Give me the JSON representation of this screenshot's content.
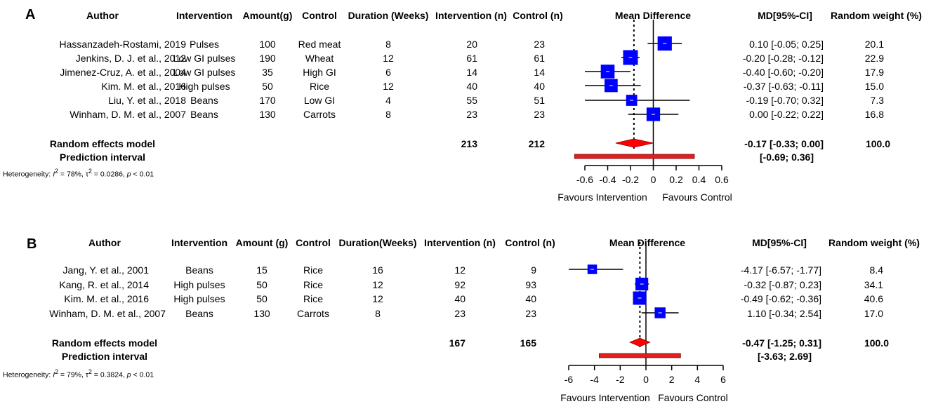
{
  "panels": [
    {
      "letter": "A",
      "headers": {
        "author": "Author",
        "intervention": "Intervention",
        "amount": "Amount(g)",
        "control": "Control",
        "duration": "Duration (Weeks)",
        "n_int": "Intervention (n)",
        "n_ctrl": "Control (n)",
        "md_title": "Mean Difference",
        "ci": "MD[95%-CI]",
        "weight": "Random weight (%)"
      },
      "rows": [
        {
          "author": "Hassanzadeh-Rostami, 2019",
          "intervention": "Pulses",
          "amount": "100",
          "control": "Red meat",
          "duration": "8",
          "n_int": "20",
          "n_ctrl": "23",
          "ci": "0.10 [-0.05;  0.25]",
          "weight": "20.1"
        },
        {
          "author": "Jenkins, D. J. et al., 2012",
          "intervention": "Low GI pulses",
          "amount": "190",
          "control": "Wheat",
          "duration": "12",
          "n_int": "61",
          "n_ctrl": "61",
          "ci": "-0.20 [-0.28; -0.12]",
          "weight": "22.9"
        },
        {
          "author": "Jimenez-Cruz, A. et al., 2004",
          "intervention": "Low GI pulses",
          "amount": "35",
          "control": "High GI",
          "duration": "6",
          "n_int": "14",
          "n_ctrl": "14",
          "ci": "-0.40 [-0.60; -0.20]",
          "weight": "17.9"
        },
        {
          "author": "Kim. M. et al., 2016",
          "intervention": "High pulses",
          "amount": "50",
          "control": "Rice",
          "duration": "12",
          "n_int": "40",
          "n_ctrl": "40",
          "ci": "-0.37 [-0.63; -0.11]",
          "weight": "15.0"
        },
        {
          "author": "Liu, Y. et al., 2018",
          "intervention": "Beans",
          "amount": "170",
          "control": "Low GI",
          "duration": "4",
          "n_int": "55",
          "n_ctrl": "51",
          "ci": "-0.19 [-0.70;  0.32]",
          "weight": "7.3"
        },
        {
          "author": "Winham, D. M. et al., 2007",
          "intervention": "Beans",
          "amount": "130",
          "control": "Carrots",
          "duration": "8",
          "n_int": "23",
          "n_ctrl": "23",
          "ci": "0.00 [-0.22;  0.22]",
          "weight": "16.8"
        }
      ],
      "summary": {
        "label": "Random effects model",
        "n_int": "213",
        "n_ctrl": "212",
        "ci": "-0.17 [-0.33;  0.00]",
        "weight": "100.0"
      },
      "prediction": {
        "label": "Prediction interval",
        "ci": "[-0.69;  0.36]"
      },
      "heterogeneity": {
        "prefix": "Heterogeneity: ",
        "i2": "I",
        "i2_sup": "2",
        "i2_val": " = 78%, ",
        "tau": "τ",
        "tau_sup": "2",
        "tau_val": " = 0.0286, ",
        "p": "p",
        "p_val": " < 0.01"
      },
      "xlabel_left": "Favours Intervention",
      "xlabel_right": "Favours Control"
    },
    {
      "letter": "B",
      "headers": {
        "author": "Author",
        "intervention": "Intervention",
        "amount": "Amount (g)",
        "control": "Control",
        "duration": "Duration(Weeks)",
        "n_int": "Intervention (n)",
        "n_ctrl": "Control (n)",
        "md_title": "Mean Difference",
        "ci": "MD[95%-CI]",
        "weight": "Random weight (%)"
      },
      "rows": [
        {
          "author": "Jang, Y. et al., 2001",
          "intervention": "Beans",
          "amount": "15",
          "control": "Rice",
          "duration": "16",
          "n_int": "12",
          "n_ctrl": "9",
          "ci": "-4.17 [-6.57; -1.77]",
          "weight": "8.4"
        },
        {
          "author": "Kang, R. et al., 2014",
          "intervention": "High pulses",
          "amount": "50",
          "control": "Rice",
          "duration": "12",
          "n_int": "92",
          "n_ctrl": "93",
          "ci": "-0.32 [-0.87;  0.23]",
          "weight": "34.1"
        },
        {
          "author": "Kim. M. et al., 2016",
          "intervention": "High pulses",
          "amount": "50",
          "control": "Rice",
          "duration": "12",
          "n_int": "40",
          "n_ctrl": "40",
          "ci": "-0.49 [-0.62; -0.36]",
          "weight": "40.6"
        },
        {
          "author": "Winham, D. M. et al., 2007",
          "intervention": "Beans",
          "amount": "130",
          "control": "Carrots",
          "duration": "8",
          "n_int": "23",
          "n_ctrl": "23",
          "ci": "1.10 [-0.34;  2.54]",
          "weight": "17.0"
        }
      ],
      "summary": {
        "label": "Random effects model",
        "n_int": "167",
        "n_ctrl": "165",
        "ci": "-0.47 [-1.25;  0.31]",
        "weight": "100.0"
      },
      "prediction": {
        "label": "Prediction interval",
        "ci": "[-3.63;  2.69]"
      },
      "heterogeneity": {
        "prefix": "Heterogeneity: ",
        "i2": "I",
        "i2_sup": "2",
        "i2_val": " = 79%, ",
        "tau": "τ",
        "tau_sup": "2",
        "tau_val": " = 0.3824, ",
        "p": "p",
        "p_val": " < 0.01"
      },
      "xlabel_left": "Favours Intervention",
      "xlabel_right": "Favours Control"
    }
  ],
  "colors": {
    "square": "#0000ff",
    "diamond": "#ff0000",
    "prediction": "#e02020",
    "line": "#000000"
  },
  "chart_data": [
    {
      "type": "forest",
      "xlim": [
        -0.6,
        0.6
      ],
      "ticks": [
        -0.6,
        -0.4,
        -0.2,
        0,
        0.2,
        0.4,
        0.6
      ],
      "tick_labels": [
        "-0.6",
        "-0.4",
        "-0.2",
        "0",
        "0.2",
        "0.4",
        "0.6"
      ],
      "studies": [
        {
          "md": 0.1,
          "lo": -0.05,
          "hi": 0.25,
          "weight": 20.1
        },
        {
          "md": -0.2,
          "lo": -0.28,
          "hi": -0.12,
          "weight": 22.9
        },
        {
          "md": -0.4,
          "lo": -0.6,
          "hi": -0.2,
          "weight": 17.9
        },
        {
          "md": -0.37,
          "lo": -0.63,
          "hi": -0.11,
          "weight": 15.0
        },
        {
          "md": -0.19,
          "lo": -0.7,
          "hi": 0.32,
          "weight": 7.3
        },
        {
          "md": 0.0,
          "lo": -0.22,
          "hi": 0.22,
          "weight": 16.8
        }
      ],
      "pooled": {
        "md": -0.17,
        "lo": -0.33,
        "hi": 0.0
      },
      "prediction": {
        "lo": -0.69,
        "hi": 0.36
      }
    },
    {
      "type": "forest",
      "xlim": [
        -6,
        6
      ],
      "ticks": [
        -6,
        -4,
        -2,
        0,
        2,
        4,
        6
      ],
      "tick_labels": [
        "-6",
        "-4",
        "-2",
        "0",
        "2",
        "4",
        "6"
      ],
      "studies": [
        {
          "md": -4.17,
          "lo": -6.57,
          "hi": -1.77,
          "weight": 8.4
        },
        {
          "md": -0.32,
          "lo": -0.87,
          "hi": 0.23,
          "weight": 34.1
        },
        {
          "md": -0.49,
          "lo": -0.62,
          "hi": -0.36,
          "weight": 40.6
        },
        {
          "md": 1.1,
          "lo": -0.34,
          "hi": 2.54,
          "weight": 17.0
        }
      ],
      "pooled": {
        "md": -0.47,
        "lo": -1.25,
        "hi": 0.31
      },
      "prediction": {
        "lo": -3.63,
        "hi": 2.69
      }
    }
  ]
}
